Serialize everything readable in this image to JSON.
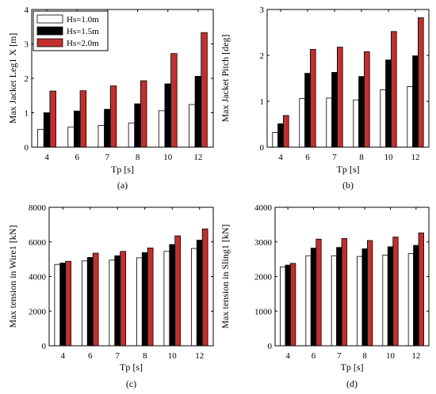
{
  "figure": {
    "legend": [
      {
        "name": "Hs=1.0m",
        "color": "#ffffff"
      },
      {
        "name": "Hs=1.5m",
        "color": "#000000"
      },
      {
        "name": "Hs=2.0m",
        "color": "#c0302e"
      }
    ]
  },
  "chart_data": [
    {
      "type": "bar",
      "panel": "(a)",
      "categories": [
        "4",
        "6",
        "7",
        "8",
        "10",
        "12"
      ],
      "xlabel": "Tp [s]",
      "ylabel": "Max Jacket Leg1 X [m]",
      "ylim": [
        0,
        4
      ],
      "yticks": [
        "0",
        "1",
        "2",
        "3",
        "4"
      ],
      "legend_position": "top-left",
      "series": [
        {
          "name": "Hs=1.0m",
          "values": [
            0.52,
            0.58,
            0.63,
            0.7,
            1.06,
            1.24
          ]
        },
        {
          "name": "Hs=1.5m",
          "values": [
            1.0,
            1.05,
            1.1,
            1.26,
            1.84,
            2.06
          ]
        },
        {
          "name": "Hs=2.0m",
          "values": [
            1.63,
            1.64,
            1.78,
            1.93,
            2.72,
            3.33
          ]
        }
      ]
    },
    {
      "type": "bar",
      "panel": "(b)",
      "categories": [
        "4",
        "6",
        "7",
        "8",
        "10",
        "12"
      ],
      "xlabel": "Tp [s]",
      "ylabel": "Max Jacket Pitch [deg]",
      "ylim": [
        0,
        3
      ],
      "yticks": [
        "0",
        "1",
        "2",
        "3"
      ],
      "series": [
        {
          "name": "Hs=1.0m",
          "values": [
            0.32,
            1.06,
            1.07,
            1.03,
            1.25,
            1.32
          ]
        },
        {
          "name": "Hs=1.5m",
          "values": [
            0.51,
            1.61,
            1.63,
            1.54,
            1.9,
            1.99
          ]
        },
        {
          "name": "Hs=2.0m",
          "values": [
            0.69,
            2.13,
            2.18,
            2.08,
            2.52,
            2.82
          ]
        }
      ]
    },
    {
      "type": "bar",
      "panel": "(c)",
      "categories": [
        "4",
        "6",
        "7",
        "8",
        "10",
        "12"
      ],
      "xlabel": "Tp [s]",
      "ylabel": "Max tension in Wire1 [kN]",
      "ylim": [
        0,
        8000
      ],
      "yticks": [
        "0",
        "2000",
        "4000",
        "6000",
        "8000"
      ],
      "series": [
        {
          "name": "Hs=1.0m",
          "values": [
            4700,
            4900,
            4950,
            5080,
            5450,
            5620
          ]
        },
        {
          "name": "Hs=1.5m",
          "values": [
            4780,
            5100,
            5200,
            5380,
            5850,
            6100
          ]
        },
        {
          "name": "Hs=2.0m",
          "values": [
            4880,
            5350,
            5450,
            5650,
            6350,
            6750
          ]
        }
      ]
    },
    {
      "type": "bar",
      "panel": "(d)",
      "categories": [
        "4",
        "6",
        "7",
        "8",
        "10",
        "12"
      ],
      "xlabel": "Tp [s]",
      "ylabel": "Max tension in Sling1 [kN]",
      "ylim": [
        0,
        4000
      ],
      "yticks": [
        "0",
        "1000",
        "2000",
        "3000",
        "4000"
      ],
      "series": [
        {
          "name": "Hs=1.0m",
          "values": [
            2280,
            2600,
            2600,
            2580,
            2620,
            2660
          ]
        },
        {
          "name": "Hs=1.5m",
          "values": [
            2330,
            2820,
            2840,
            2800,
            2860,
            2900
          ]
        },
        {
          "name": "Hs=2.0m",
          "values": [
            2380,
            3080,
            3100,
            3040,
            3140,
            3260
          ]
        }
      ]
    }
  ]
}
